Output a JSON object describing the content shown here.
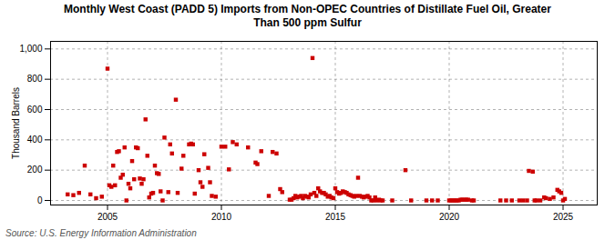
{
  "chart_data": {
    "type": "scatter",
    "title": "Monthly West Coast (PADD 5) Imports from Non-OPEC Countries of Distillate Fuel Oil, Greater\nThan 500 ppm Sulfur",
    "ylabel": "Thousand Barrels",
    "annotations": [
      "Source: U.S. Energy Information Administration"
    ],
    "color": "#cc0000",
    "marker": "square",
    "grid": true,
    "xlim": [
      2002.5,
      2026.5
    ],
    "ylim": [
      -30,
      1050
    ],
    "xticks": [
      2005,
      2010,
      2015,
      2020,
      2025
    ],
    "yticks": [
      0,
      200,
      400,
      600,
      800,
      {
        "value": 1000,
        "label": "1,000"
      }
    ],
    "x": [
      2003.25,
      2003.5,
      2003.75,
      2004.0,
      2004.25,
      2004.5,
      2004.75,
      2005.0,
      2005.08,
      2005.17,
      2005.25,
      2005.33,
      2005.42,
      2005.5,
      2005.58,
      2005.67,
      2005.75,
      2005.83,
      2005.92,
      2006.0,
      2006.08,
      2006.17,
      2006.25,
      2006.33,
      2006.42,
      2006.5,
      2006.58,
      2006.67,
      2006.75,
      2006.83,
      2006.92,
      2007.0,
      2007.08,
      2007.17,
      2007.25,
      2007.33,
      2007.42,
      2007.5,
      2007.67,
      2007.75,
      2007.83,
      2008.0,
      2008.08,
      2008.25,
      2008.33,
      2008.58,
      2008.67,
      2008.75,
      2008.83,
      2009.0,
      2009.08,
      2009.17,
      2009.25,
      2009.42,
      2009.5,
      2009.58,
      2009.75,
      2010.0,
      2010.17,
      2010.33,
      2010.5,
      2010.67,
      2011.17,
      2011.5,
      2011.58,
      2011.75,
      2012.08,
      2012.25,
      2012.42,
      2012.58,
      2012.67,
      2013.0,
      2013.08,
      2013.17,
      2013.25,
      2013.33,
      2013.42,
      2013.5,
      2013.58,
      2013.67,
      2013.75,
      2013.83,
      2013.92,
      2014.0,
      2014.08,
      2014.17,
      2014.25,
      2014.33,
      2014.42,
      2014.5,
      2014.58,
      2014.67,
      2014.75,
      2014.83,
      2014.92,
      2015.0,
      2015.08,
      2015.17,
      2015.25,
      2015.33,
      2015.42,
      2015.5,
      2015.58,
      2015.67,
      2015.75,
      2015.83,
      2015.92,
      2016.0,
      2016.08,
      2016.17,
      2016.25,
      2016.33,
      2016.42,
      2016.5,
      2016.58,
      2016.67,
      2016.75,
      2016.83,
      2016.92,
      2017.0,
      2017.08,
      2017.5,
      2018.08,
      2018.33,
      2019.0,
      2019.25,
      2019.5,
      2020.0,
      2020.08,
      2020.17,
      2020.25,
      2020.33,
      2020.42,
      2020.5,
      2020.58,
      2020.67,
      2020.75,
      2020.83,
      2021.0,
      2021.08,
      2022.25,
      2022.5,
      2022.75,
      2023.08,
      2023.25,
      2023.42,
      2023.5,
      2023.67,
      2023.75,
      2023.83,
      2024.0,
      2024.17,
      2024.25,
      2024.42,
      2024.58,
      2024.75,
      2024.83,
      2024.92,
      2025.0,
      2025.08
    ],
    "values": [
      40,
      35,
      50,
      230,
      40,
      15,
      25,
      870,
      100,
      90,
      230,
      100,
      320,
      325,
      150,
      170,
      350,
      0,
      110,
      80,
      260,
      140,
      350,
      345,
      145,
      110,
      140,
      535,
      295,
      20,
      45,
      50,
      230,
      180,
      175,
      60,
      0,
      415,
      55,
      370,
      310,
      665,
      50,
      210,
      295,
      370,
      375,
      370,
      45,
      200,
      120,
      90,
      305,
      215,
      120,
      30,
      25,
      355,
      355,
      205,
      385,
      370,
      350,
      250,
      240,
      325,
      30,
      320,
      310,
      75,
      55,
      5,
      5,
      15,
      30,
      20,
      25,
      30,
      15,
      30,
      25,
      20,
      40,
      940,
      50,
      30,
      80,
      60,
      50,
      50,
      40,
      25,
      30,
      20,
      15,
      80,
      55,
      45,
      50,
      60,
      55,
      50,
      40,
      35,
      30,
      25,
      30,
      150,
      30,
      25,
      20,
      25,
      30,
      20,
      0,
      0,
      20,
      0,
      5,
      0,
      0,
      0,
      200,
      0,
      0,
      0,
      0,
      0,
      0,
      0,
      0,
      0,
      0,
      5,
      5,
      5,
      5,
      5,
      0,
      0,
      0,
      0,
      0,
      0,
      0,
      0,
      195,
      190,
      0,
      0,
      0,
      20,
      15,
      10,
      20,
      70,
      60,
      50,
      0,
      10
    ]
  }
}
